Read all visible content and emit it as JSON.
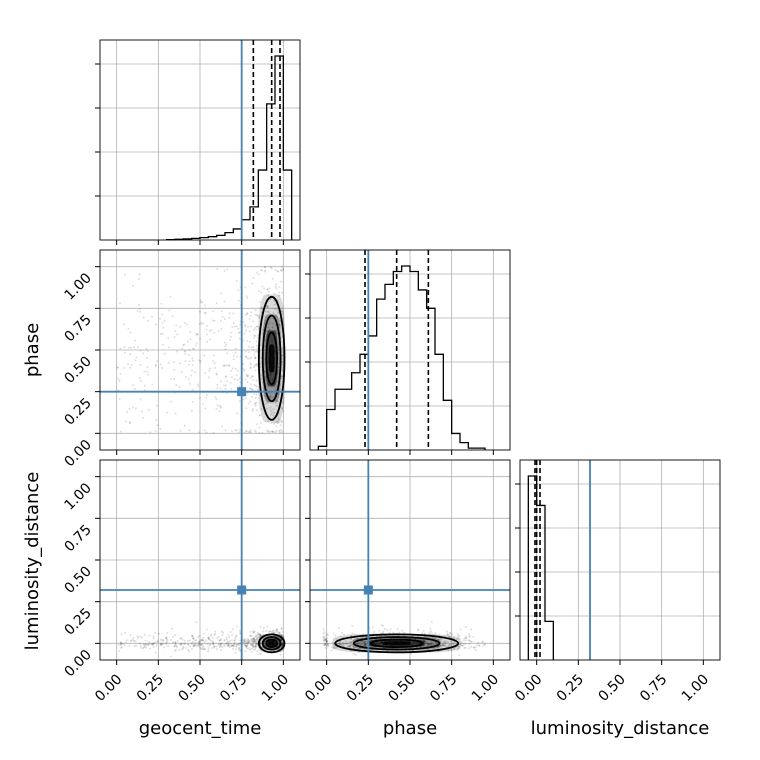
{
  "chart_data": {
    "type": "corner",
    "parameters": [
      "geocent_time",
      "phase",
      "luminosity_distance"
    ],
    "tick_labels": [
      "0.00",
      "0.25",
      "0.50",
      "0.75",
      "1.00"
    ],
    "axis_range": [
      -0.1,
      1.1
    ],
    "grid": true,
    "truth": {
      "geocent_time": 0.75,
      "phase": 0.25,
      "luminosity_distance": 0.32
    },
    "truth_color": "#4682b4",
    "histograms": [
      {
        "parameter": "geocent_time",
        "bin_edges": [
          0.3,
          0.35,
          0.4,
          0.45,
          0.5,
          0.55,
          0.6,
          0.65,
          0.7,
          0.75,
          0.8,
          0.85,
          0.9,
          0.95,
          1.0,
          1.05
        ],
        "counts": [
          0.002,
          0.004,
          0.006,
          0.009,
          0.013,
          0.018,
          0.025,
          0.04,
          0.06,
          0.11,
          0.18,
          0.38,
          0.74,
          1.0,
          0.38
        ],
        "quantiles": [
          0.82,
          0.93,
          0.98
        ]
      },
      {
        "parameter": "phase",
        "bin_edges": [
          -0.05,
          0.0,
          0.05,
          0.1,
          0.15,
          0.2,
          0.25,
          0.3,
          0.35,
          0.4,
          0.45,
          0.5,
          0.55,
          0.6,
          0.65,
          0.7,
          0.75,
          0.8,
          0.85,
          0.9,
          0.95
        ],
        "counts": [
          0.02,
          0.22,
          0.33,
          0.33,
          0.42,
          0.52,
          0.62,
          0.82,
          0.9,
          0.97,
          1.0,
          0.97,
          0.87,
          0.77,
          0.52,
          0.27,
          0.09,
          0.04,
          0.01,
          0.01
        ],
        "quantiles": [
          0.23,
          0.42,
          0.61
        ]
      },
      {
        "parameter": "luminosity_distance",
        "bin_edges": [
          -0.05,
          0.0,
          0.05,
          0.1
        ],
        "counts": [
          1.0,
          0.84,
          0.21
        ],
        "quantiles": [
          -0.01,
          0.0,
          0.02
        ]
      }
    ],
    "contours_2d": [
      {
        "x": "geocent_time",
        "y": "phase",
        "center": [
          0.93,
          0.45
        ],
        "spread": [
          0.05,
          0.24
        ]
      },
      {
        "x": "geocent_time",
        "y": "luminosity_distance",
        "center": [
          0.93,
          0.0
        ],
        "spread": [
          0.05,
          0.035
        ]
      },
      {
        "x": "phase",
        "y": "luminosity_distance",
        "center": [
          0.42,
          0.0
        ],
        "spread": [
          0.24,
          0.035
        ]
      }
    ],
    "contour_levels": [
      0.5,
      0.85,
      0.98
    ]
  }
}
